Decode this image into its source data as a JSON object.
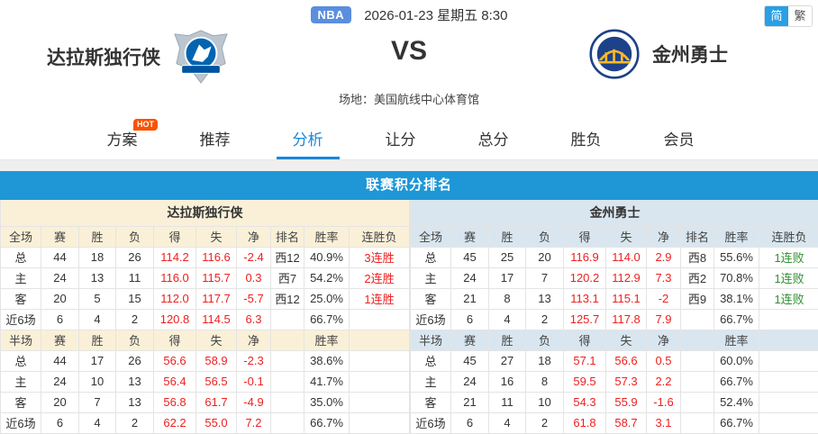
{
  "header": {
    "league_badge": "NBA",
    "datetime": "2026-01-23 星期五 8:30",
    "lang_simplified": "简",
    "lang_traditional": "繁",
    "home_team": "达拉斯独行侠",
    "vs": "VS",
    "away_team": "金州勇士",
    "venue": "场地：美国航线中心体育馆"
  },
  "tabs": [
    {
      "label": "方案",
      "badge": "HOT",
      "active": false
    },
    {
      "label": "推荐",
      "active": false
    },
    {
      "label": "分析",
      "active": true
    },
    {
      "label": "让分",
      "active": false
    },
    {
      "label": "总分",
      "active": false
    },
    {
      "label": "胜负",
      "active": false
    },
    {
      "label": "会员",
      "active": false
    }
  ],
  "section_title": "联赛积分排名",
  "tables": [
    {
      "team": "达拉斯独行侠",
      "theme": "t-cream",
      "full_header": [
        "全场",
        "赛",
        "胜",
        "负",
        "得",
        "失",
        "净",
        "排名",
        "胜率",
        "连胜负"
      ],
      "full_rows": [
        [
          "总",
          "44",
          "18",
          "26",
          "114.2",
          "116.6",
          "-2.4",
          "西12",
          "40.9%",
          "3连胜"
        ],
        [
          "主",
          "24",
          "13",
          "11",
          "116.0",
          "115.7",
          "0.3",
          "西7",
          "54.2%",
          "2连胜"
        ],
        [
          "客",
          "20",
          "5",
          "15",
          "112.0",
          "117.7",
          "-5.7",
          "西12",
          "25.0%",
          "1连胜"
        ],
        [
          "近6场",
          "6",
          "4",
          "2",
          "120.8",
          "114.5",
          "6.3",
          "",
          "66.7%",
          ""
        ]
      ],
      "half_header": [
        "半场",
        "赛",
        "胜",
        "负",
        "得",
        "失",
        "净",
        "",
        "胜率",
        ""
      ],
      "half_rows": [
        [
          "总",
          "44",
          "17",
          "26",
          "56.6",
          "58.9",
          "-2.3",
          "",
          "38.6%",
          ""
        ],
        [
          "主",
          "24",
          "10",
          "13",
          "56.4",
          "56.5",
          "-0.1",
          "",
          "41.7%",
          ""
        ],
        [
          "客",
          "20",
          "7",
          "13",
          "56.8",
          "61.7",
          "-4.9",
          "",
          "35.0%",
          ""
        ],
        [
          "近6场",
          "6",
          "4",
          "2",
          "62.2",
          "55.0",
          "7.2",
          "",
          "66.7%",
          ""
        ]
      ]
    },
    {
      "team": "金州勇士",
      "theme": "t-blue",
      "full_header": [
        "全场",
        "赛",
        "胜",
        "负",
        "得",
        "失",
        "净",
        "排名",
        "胜率",
        "连胜负"
      ],
      "full_rows": [
        [
          "总",
          "45",
          "25",
          "20",
          "116.9",
          "114.0",
          "2.9",
          "西8",
          "55.6%",
          "1连败"
        ],
        [
          "主",
          "24",
          "17",
          "7",
          "120.2",
          "112.9",
          "7.3",
          "西2",
          "70.8%",
          "1连败"
        ],
        [
          "客",
          "21",
          "8",
          "13",
          "113.1",
          "115.1",
          "-2",
          "西9",
          "38.1%",
          "1连败"
        ],
        [
          "近6场",
          "6",
          "4",
          "2",
          "125.7",
          "117.8",
          "7.9",
          "",
          "66.7%",
          ""
        ]
      ],
      "half_header": [
        "半场",
        "赛",
        "胜",
        "负",
        "得",
        "失",
        "净",
        "",
        "胜率",
        ""
      ],
      "half_rows": [
        [
          "总",
          "45",
          "27",
          "18",
          "57.1",
          "56.6",
          "0.5",
          "",
          "60.0%",
          ""
        ],
        [
          "主",
          "24",
          "16",
          "8",
          "59.5",
          "57.3",
          "2.2",
          "",
          "66.7%",
          ""
        ],
        [
          "客",
          "21",
          "11",
          "10",
          "54.3",
          "55.9",
          "-1.6",
          "",
          "52.4%",
          ""
        ],
        [
          "近6场",
          "6",
          "4",
          "2",
          "61.8",
          "58.7",
          "3.1",
          "",
          "66.7%",
          ""
        ]
      ]
    }
  ],
  "colors": {
    "banner_blue": "#1f97d6",
    "active_tab_blue": "#1a87da",
    "nba_badge_blue": "#5b8ede",
    "hot_orange": "#fe5000",
    "cream_bg": "#faf0d8",
    "lightblue_bg": "#d9e6ef",
    "value_red": "#ef1f1f",
    "streak_green": "#2f8f2f"
  }
}
